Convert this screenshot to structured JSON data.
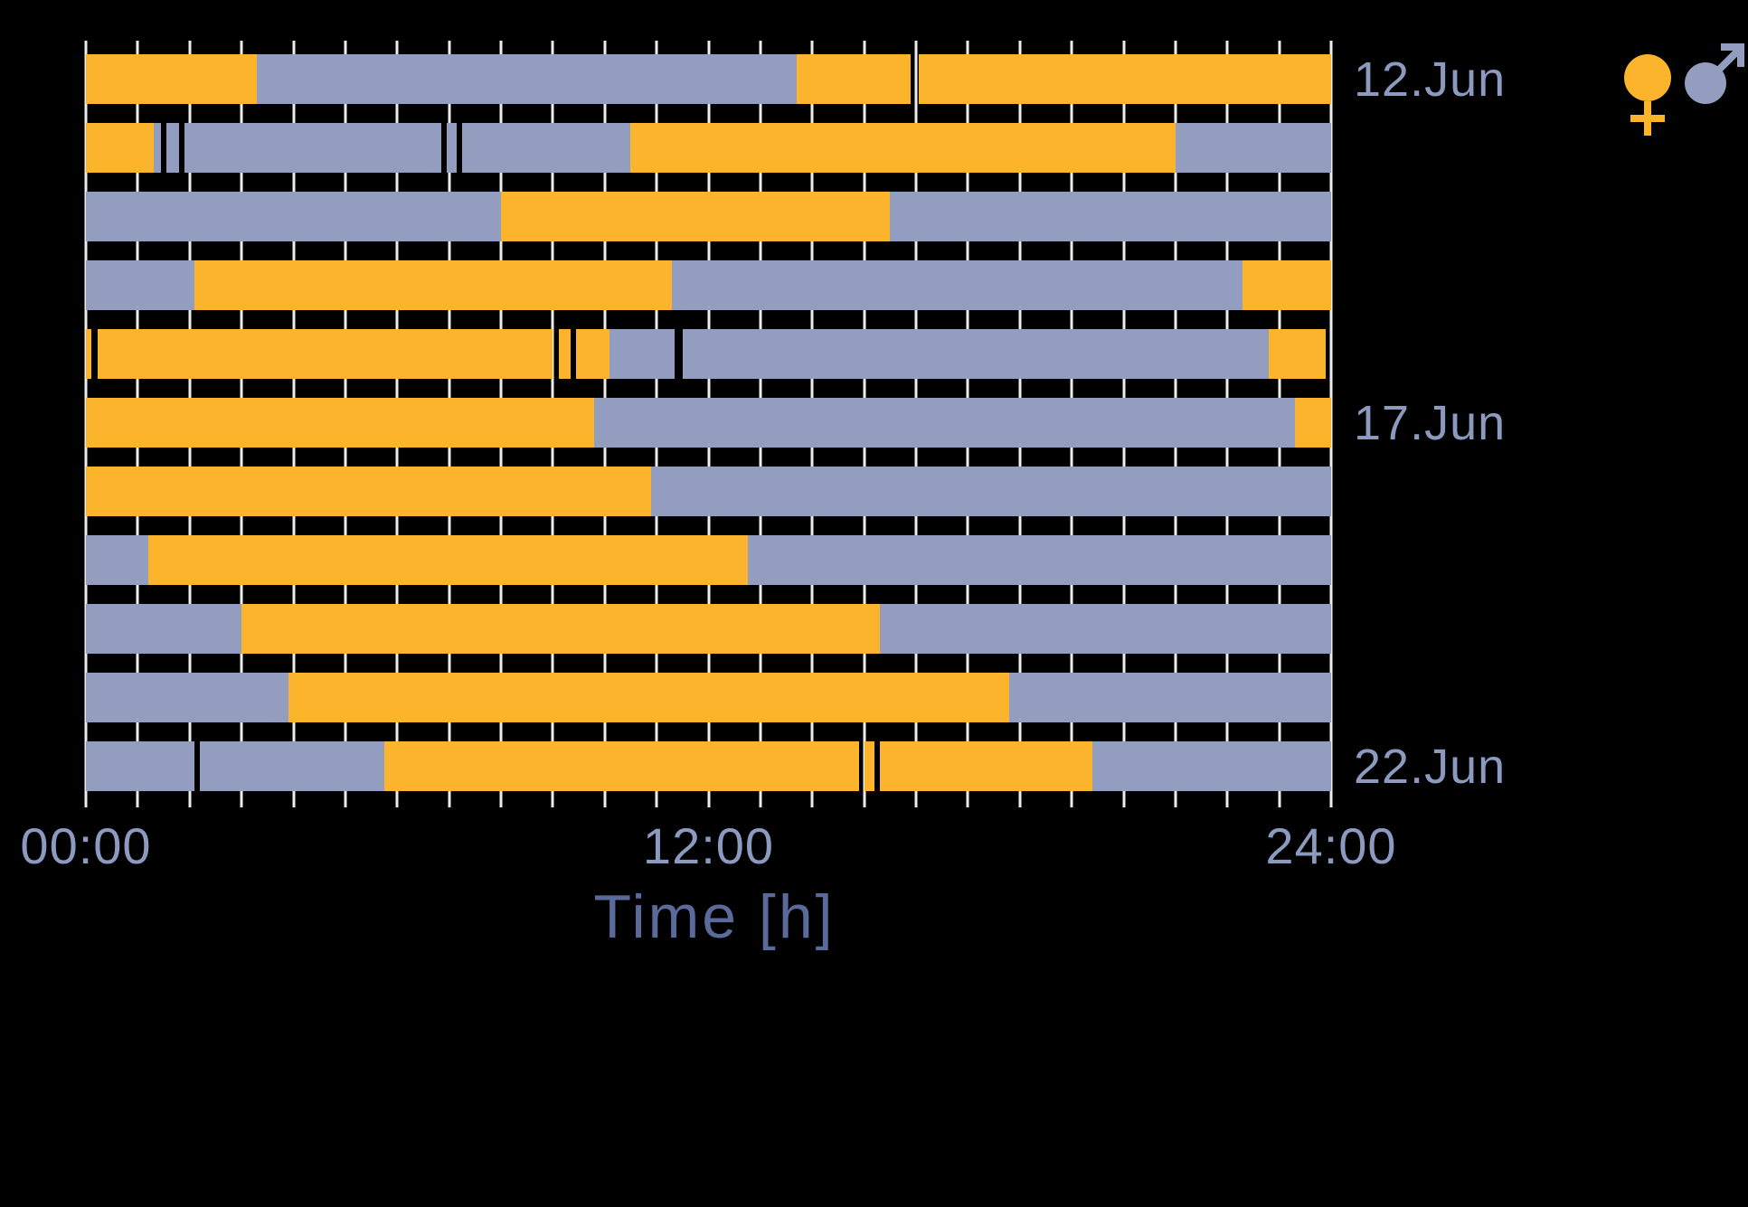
{
  "chart_data": {
    "type": "bar",
    "variant": "daily-activity-timeline",
    "title": "",
    "xlabel": "Time [h]",
    "ylabel": "",
    "xlim_hours": [
      0,
      24
    ],
    "grid": {
      "show": true,
      "interval_hours": 1
    },
    "x_ticks": [
      {
        "hour": 0,
        "label": "00:00"
      },
      {
        "hour": 12,
        "label": "12:00"
      },
      {
        "hour": 24,
        "label": "24:00"
      }
    ],
    "date_labels": [
      {
        "row_index": 0,
        "label": "12.Jun"
      },
      {
        "row_index": 5,
        "label": "17.Jun"
      },
      {
        "row_index": 10,
        "label": "22.Jun"
      }
    ],
    "colors": {
      "female": "#FBB42C",
      "male": "#929DC0"
    },
    "style": {
      "grid_color": "#ECECEC",
      "text_color": "#8D9ABF",
      "title_color": "#5A6A9B",
      "background": "#000000"
    },
    "legend": {
      "position": "top-right",
      "items": [
        {
          "name": "female",
          "symbol": "female-sign",
          "color": "#FBB42C"
        },
        {
          "name": "male",
          "symbol": "male-sign",
          "color": "#929DC0"
        }
      ]
    },
    "rows": [
      {
        "date": "12.Jun",
        "segments": [
          {
            "start": 0,
            "end": 3.3,
            "sex": "female"
          },
          {
            "start": 3.3,
            "end": 13.7,
            "sex": "male"
          },
          {
            "start": 13.7,
            "end": 15.9,
            "sex": "female"
          },
          {
            "start": 16.05,
            "end": 24,
            "sex": "female"
          }
        ]
      },
      {
        "segments": [
          {
            "start": 0,
            "end": 1.3,
            "sex": "female"
          },
          {
            "start": 1.3,
            "end": 1.45,
            "sex": "male"
          },
          {
            "start": 1.55,
            "end": 1.8,
            "sex": "male"
          },
          {
            "start": 1.9,
            "end": 6.85,
            "sex": "male"
          },
          {
            "start": 6.95,
            "end": 7.15,
            "sex": "male"
          },
          {
            "start": 7.25,
            "end": 10.5,
            "sex": "male"
          },
          {
            "start": 10.5,
            "end": 21.0,
            "sex": "female"
          },
          {
            "start": 21.0,
            "end": 24,
            "sex": "male"
          }
        ]
      },
      {
        "segments": [
          {
            "start": 0,
            "end": 8.0,
            "sex": "male"
          },
          {
            "start": 8.0,
            "end": 15.5,
            "sex": "female"
          },
          {
            "start": 15.5,
            "end": 24,
            "sex": "male"
          }
        ]
      },
      {
        "segments": [
          {
            "start": 0,
            "end": 2.1,
            "sex": "male"
          },
          {
            "start": 2.1,
            "end": 11.3,
            "sex": "female"
          },
          {
            "start": 11.3,
            "end": 22.3,
            "sex": "male"
          },
          {
            "start": 22.3,
            "end": 24,
            "sex": "female"
          }
        ]
      },
      {
        "segments": [
          {
            "start": 0,
            "end": 0.1,
            "sex": "female"
          },
          {
            "start": 0.22,
            "end": 9.0,
            "sex": "female"
          },
          {
            "start": 9.12,
            "end": 9.35,
            "sex": "female"
          },
          {
            "start": 9.45,
            "end": 10.1,
            "sex": "female"
          },
          {
            "start": 10.1,
            "end": 11.35,
            "sex": "male"
          },
          {
            "start": 11.5,
            "end": 22.8,
            "sex": "male"
          },
          {
            "start": 22.8,
            "end": 23.9,
            "sex": "female"
          }
        ]
      },
      {
        "date": "17.Jun",
        "segments": [
          {
            "start": 0,
            "end": 9.8,
            "sex": "female"
          },
          {
            "start": 9.8,
            "end": 23.3,
            "sex": "male"
          },
          {
            "start": 23.3,
            "end": 24,
            "sex": "female"
          }
        ]
      },
      {
        "segments": [
          {
            "start": 0,
            "end": 10.9,
            "sex": "female"
          },
          {
            "start": 10.9,
            "end": 24,
            "sex": "male"
          }
        ]
      },
      {
        "segments": [
          {
            "start": 0,
            "end": 1.2,
            "sex": "male"
          },
          {
            "start": 1.2,
            "end": 12.75,
            "sex": "female"
          },
          {
            "start": 12.75,
            "end": 24,
            "sex": "male"
          }
        ]
      },
      {
        "segments": [
          {
            "start": 0,
            "end": 3.0,
            "sex": "male"
          },
          {
            "start": 3.0,
            "end": 15.3,
            "sex": "female"
          },
          {
            "start": 15.3,
            "end": 24,
            "sex": "male"
          }
        ]
      },
      {
        "segments": [
          {
            "start": 0,
            "end": 3.9,
            "sex": "male"
          },
          {
            "start": 3.9,
            "end": 17.8,
            "sex": "female"
          },
          {
            "start": 17.8,
            "end": 24,
            "sex": "male"
          }
        ]
      },
      {
        "date": "22.Jun",
        "segments": [
          {
            "start": 0,
            "end": 2.1,
            "sex": "male"
          },
          {
            "start": 2.2,
            "end": 5.75,
            "sex": "male"
          },
          {
            "start": 5.75,
            "end": 14.9,
            "sex": "female"
          },
          {
            "start": 15.0,
            "end": 15.2,
            "sex": "female"
          },
          {
            "start": 15.3,
            "end": 19.4,
            "sex": "female"
          },
          {
            "start": 19.4,
            "end": 24,
            "sex": "male"
          }
        ]
      }
    ]
  }
}
